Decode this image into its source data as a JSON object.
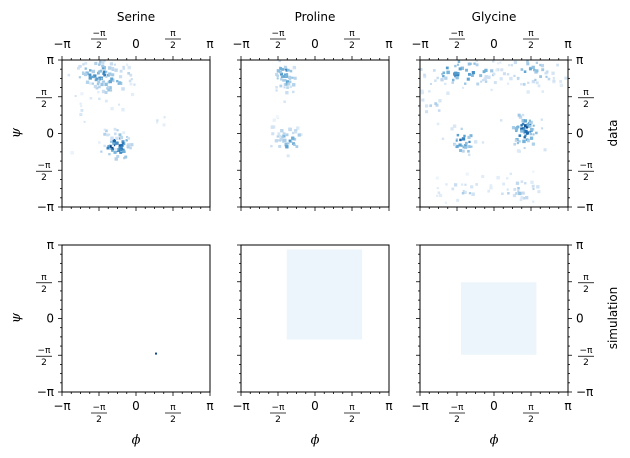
{
  "chart_data": [
    {
      "type": "heatmap",
      "title": "Serine",
      "row": "data",
      "xlabel": "",
      "ylabel": "ψ",
      "xlim": [
        -3.1416,
        3.1416
      ],
      "ylim": [
        -3.1416,
        3.1416
      ],
      "colormap": "Blues",
      "clusters": [
        {
          "x": -1.55,
          "y": 2.55,
          "sx": 0.55,
          "sy": 0.35,
          "count": 70,
          "max": 0.7
        },
        {
          "x": -0.95,
          "y": 2.3,
          "sx": 0.6,
          "sy": 0.45,
          "count": 35,
          "max": 0.5
        },
        {
          "x": -0.85,
          "y": -0.55,
          "sx": 0.3,
          "sy": 0.3,
          "count": 55,
          "max": 1.0
        },
        {
          "x": -1.2,
          "y": -0.1,
          "sx": 0.3,
          "sy": 0.3,
          "count": 15,
          "max": 0.4
        },
        {
          "x": -2.4,
          "y": 0.6,
          "sx": 0.3,
          "sy": 0.6,
          "count": 8,
          "max": 0.25
        },
        {
          "x": 1.0,
          "y": 0.6,
          "sx": 0.2,
          "sy": 0.2,
          "count": 4,
          "max": 0.2
        }
      ]
    },
    {
      "type": "heatmap",
      "title": "Proline",
      "row": "data",
      "xlabel": "",
      "ylabel": "",
      "xlim": [
        -3.1416,
        3.1416
      ],
      "ylim": [
        -3.1416,
        3.1416
      ],
      "colormap": "Blues",
      "clusters": [
        {
          "x": -1.25,
          "y": 2.5,
          "sx": 0.25,
          "sy": 0.35,
          "count": 50,
          "max": 0.75
        },
        {
          "x": -1.1,
          "y": -0.35,
          "sx": 0.3,
          "sy": 0.3,
          "count": 40,
          "max": 0.7
        },
        {
          "x": -1.6,
          "y": 0.5,
          "sx": 0.1,
          "sy": 0.1,
          "count": 3,
          "max": 0.2
        }
      ]
    },
    {
      "type": "heatmap",
      "title": "Glycine",
      "row": "data",
      "xlabel": "",
      "ylabel": "",
      "xlim": [
        -3.1416,
        3.1416
      ],
      "ylim": [
        -3.1416,
        3.1416
      ],
      "colormap": "Blues",
      "clusters": [
        {
          "x": -1.4,
          "y": 2.65,
          "sx": 0.9,
          "sy": 0.35,
          "count": 70,
          "max": 0.7
        },
        {
          "x": 1.5,
          "y": 2.6,
          "sx": 0.8,
          "sy": 0.4,
          "count": 55,
          "max": 0.5
        },
        {
          "x": 1.35,
          "y": 0.1,
          "sx": 0.3,
          "sy": 0.4,
          "count": 60,
          "max": 0.9
        },
        {
          "x": -1.3,
          "y": -0.3,
          "sx": 0.3,
          "sy": 0.3,
          "count": 35,
          "max": 0.8
        },
        {
          "x": 1.1,
          "y": -2.4,
          "sx": 0.6,
          "sy": 0.35,
          "count": 30,
          "max": 0.4
        },
        {
          "x": -1.3,
          "y": -2.55,
          "sx": 0.6,
          "sy": 0.35,
          "count": 25,
          "max": 0.35
        },
        {
          "x": -2.6,
          "y": 1.2,
          "sx": 0.4,
          "sy": 0.5,
          "count": 12,
          "max": 0.3
        }
      ]
    },
    {
      "type": "heatmap",
      "title": "",
      "row": "simulation",
      "xlabel": "ϕ",
      "ylabel": "ψ",
      "xlim": [
        -3.1416,
        3.1416
      ],
      "ylim": [
        -3.1416,
        3.1416
      ],
      "colormap": "Blues",
      "clusters": [
        {
          "x": 0.85,
          "y": -1.5,
          "sx": 0.02,
          "sy": 0.02,
          "count": 1,
          "max": 1.0
        }
      ]
    },
    {
      "type": "heatmap",
      "title": "",
      "row": "simulation",
      "xlabel": "ϕ",
      "ylabel": "",
      "xlim": [
        -3.1416,
        3.1416
      ],
      "ylim": [
        -3.1416,
        3.1416
      ],
      "colormap": "Blues",
      "uniform_region": {
        "x0": -1.2,
        "x1": 2.0,
        "y0": -0.9,
        "y1": 2.95,
        "value": 0.05
      }
    },
    {
      "type": "heatmap",
      "title": "",
      "row": "simulation",
      "xlabel": "ϕ",
      "ylabel": "",
      "xlim": [
        -3.1416,
        3.1416
      ],
      "ylim": [
        -3.1416,
        3.1416
      ],
      "colormap": "Blues",
      "uniform_region": {
        "x0": -1.4,
        "x1": 1.8,
        "y0": -1.55,
        "y1": 1.55,
        "value": 0.05
      }
    }
  ],
  "labels": {
    "titles": [
      "Serine",
      "Proline",
      "Glycine"
    ],
    "row_labels": [
      "data",
      "simulation"
    ],
    "phi": "ϕ",
    "psi": "ψ"
  },
  "ticks": [
    {
      "kind": "plain",
      "text": "−π"
    },
    {
      "kind": "frac",
      "text": "−π/2",
      "num": "−π",
      "den": "2"
    },
    {
      "kind": "plain",
      "text": "0"
    },
    {
      "kind": "frac",
      "text": "π/2",
      "num": "π",
      "den": "2"
    },
    {
      "kind": "plain",
      "text": "π"
    }
  ]
}
